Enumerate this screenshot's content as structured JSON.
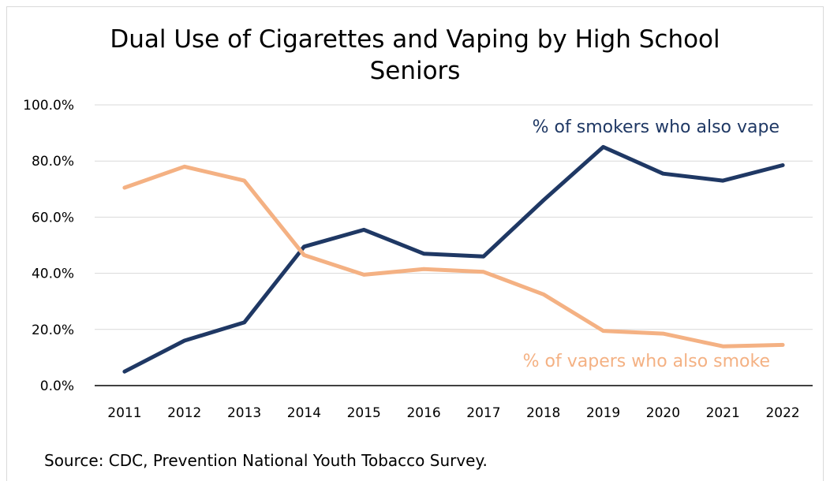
{
  "chart_data": {
    "type": "line",
    "title": "Dual Use of Cigarettes and Vaping by High School Seniors",
    "categories": [
      "2011",
      "2012",
      "2013",
      "2014",
      "2015",
      "2016",
      "2017",
      "2018",
      "2019",
      "2020",
      "2021",
      "2022"
    ],
    "series": [
      {
        "name": "% of smokers who also vape",
        "color": "#1f3864",
        "values": [
          5.0,
          16.0,
          22.5,
          49.5,
          55.5,
          47.0,
          46.0,
          66.0,
          85.0,
          75.5,
          73.0,
          78.5
        ]
      },
      {
        "name": "% of vapers who also smoke",
        "color": "#f4b183",
        "values": [
          70.5,
          78.0,
          73.0,
          46.5,
          39.5,
          41.5,
          40.5,
          32.5,
          19.5,
          18.5,
          14.0,
          14.5
        ]
      }
    ],
    "yticks": [
      "0.0%",
      "20.0%",
      "40.0%",
      "60.0%",
      "80.0%",
      "100.0%"
    ],
    "ylim": [
      0,
      100
    ],
    "grid": true,
    "legend": "inline-annotations"
  },
  "source": "Source: CDC, Prevention National Youth Tobacco Survey."
}
